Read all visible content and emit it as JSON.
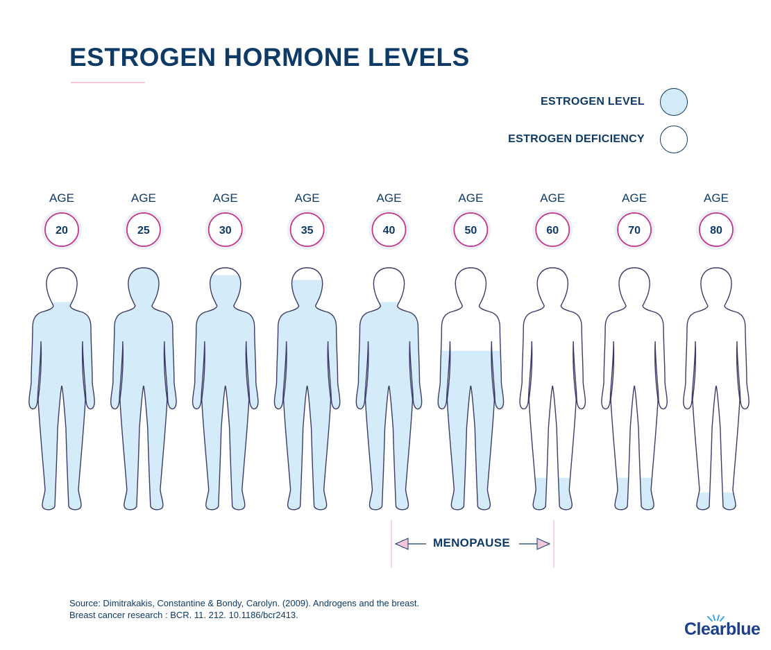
{
  "title": "ESTROGEN HORMONE LEVELS",
  "legend": [
    {
      "label": "ESTROGEN LEVEL",
      "fill": "#d4ecf9"
    },
    {
      "label": "ESTROGEN DEFICIENCY",
      "fill": "#ffffff"
    }
  ],
  "colors": {
    "navy": "#0e3a66",
    "pink": "#c2358a",
    "estrogen_fill": "#d4ecf9",
    "outline": "#3b3a66"
  },
  "chart_data": {
    "type": "pictograph",
    "age_prefix": "AGE",
    "categories": [
      "20",
      "25",
      "30",
      "35",
      "40",
      "50",
      "60",
      "70",
      "80"
    ],
    "values": [
      0.86,
      1.0,
      0.97,
      0.95,
      0.86,
      0.66,
      0.14,
      0.14,
      0.08
    ],
    "value_meaning": "fraction of figure height filled with estrogen level colour",
    "annotation": {
      "label": "MENOPAUSE",
      "from": "40",
      "to": "60"
    }
  },
  "source": {
    "line1": "Source: Dimitrakakis, Constantine & Bondy, Carolyn. (2009). Androgens and the breast.",
    "line2": "Breast cancer research : BCR. 11. 212. 10.1186/bcr2413."
  },
  "logo_text": "Clearblue"
}
